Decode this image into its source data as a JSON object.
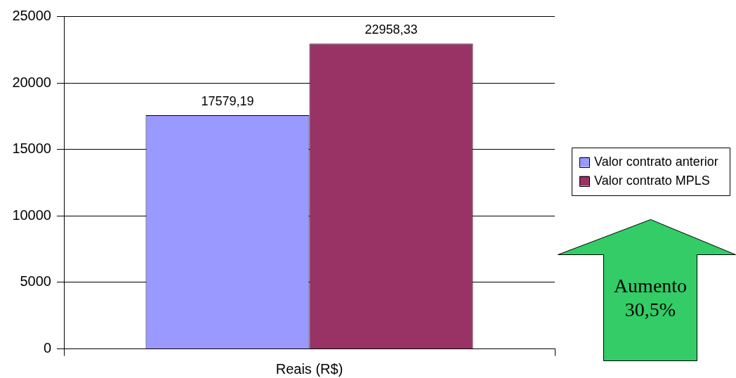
{
  "chart_data": {
    "type": "bar",
    "categories": [
      "Reais (R$)"
    ],
    "series": [
      {
        "name": "Valor contrato anterior",
        "color": "#9999ff",
        "values": [
          17579.19
        ],
        "value_labels": [
          "17579,19"
        ]
      },
      {
        "name": "Valor contrato MPLS",
        "color": "#993366",
        "values": [
          22958.33
        ],
        "value_labels": [
          "22958,33"
        ]
      }
    ],
    "ylim": [
      0,
      25000
    ],
    "yticks": [
      0,
      5000,
      10000,
      15000,
      20000,
      25000
    ],
    "grid": "y",
    "legend": "right",
    "annotations": [
      "Aumento 30,5%"
    ]
  }
}
